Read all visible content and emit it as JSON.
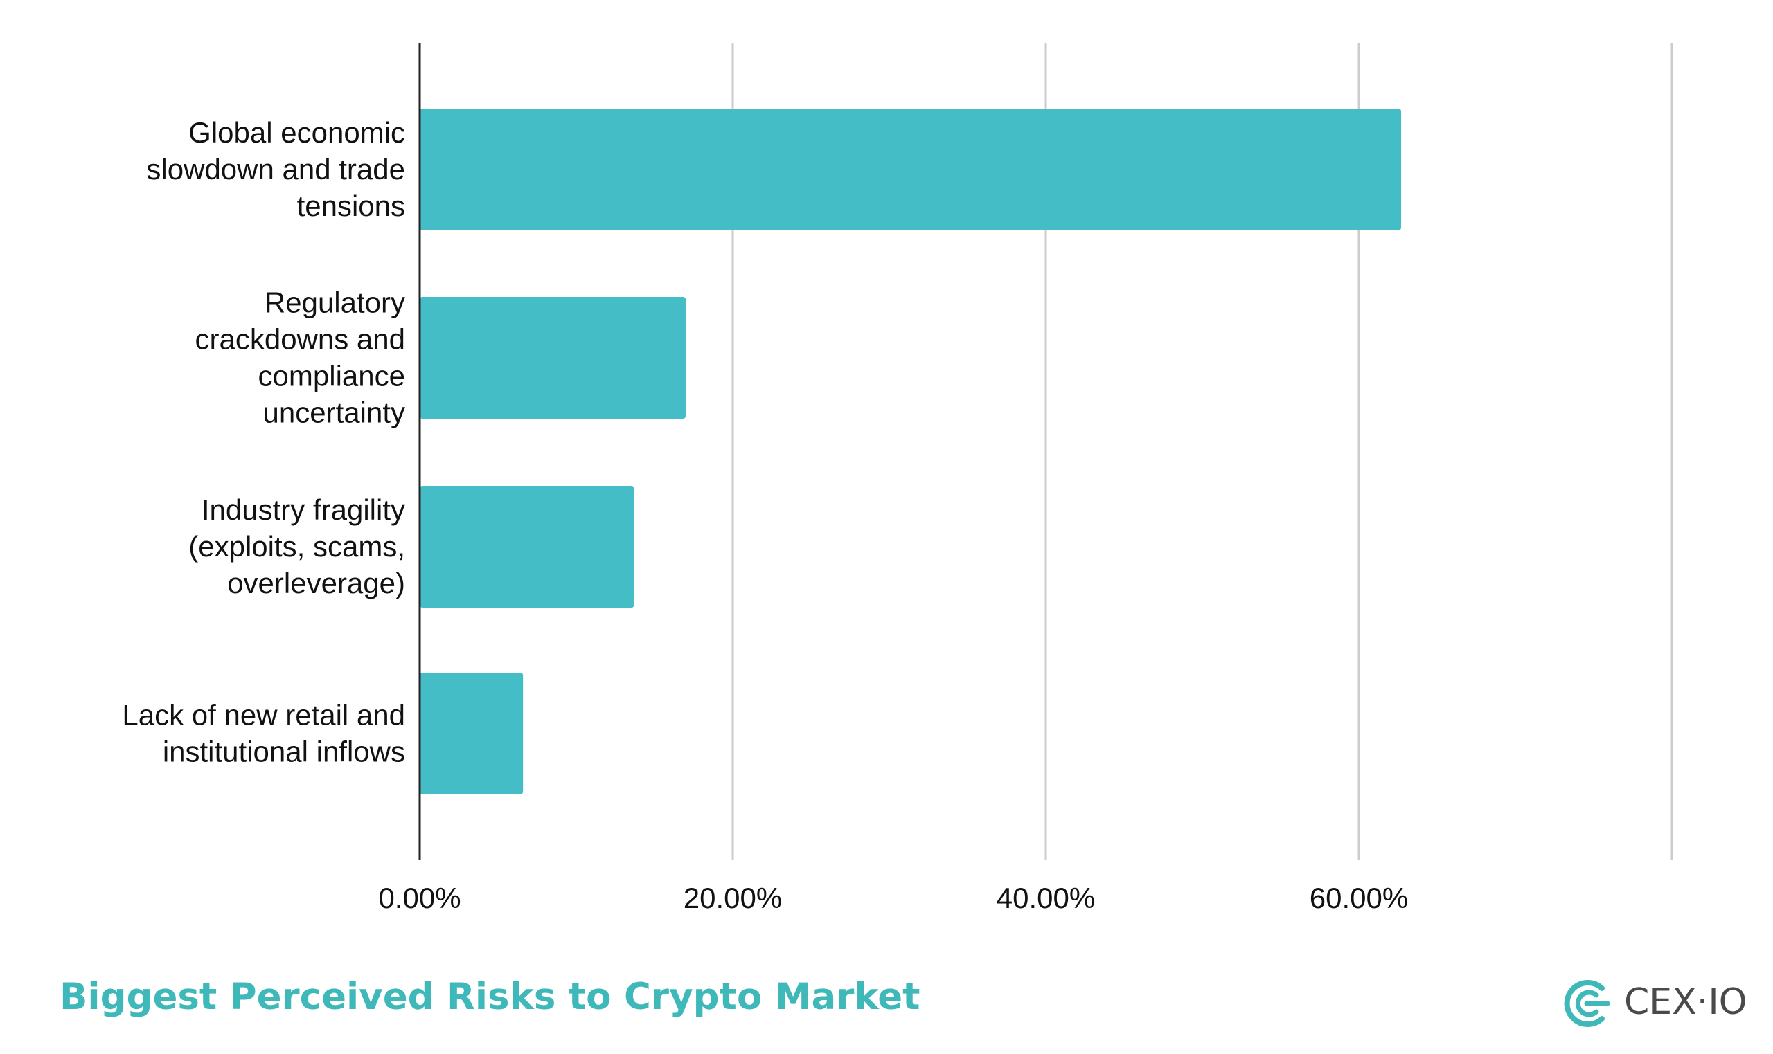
{
  "chart_data": {
    "type": "bar",
    "orientation": "horizontal",
    "title": "Biggest Perceived Risks to Crypto Market",
    "categories": [
      [
        "Global economic",
        "slowdown and trade",
        "tensions"
      ],
      [
        "Regulatory",
        "crackdowns and",
        "compliance",
        "uncertainty"
      ],
      [
        "Industry fragility",
        "(exploits, scams,",
        "overleverage)"
      ],
      [
        "Lack of new retail and",
        "institutional inflows"
      ]
    ],
    "values": [
      62.7,
      17.0,
      13.7,
      6.6
    ],
    "xlim": [
      0,
      80
    ],
    "xticks": [
      "0.00%",
      "20.00%",
      "40.00%",
      "60.00%"
    ],
    "grid": true,
    "bar_color": "#45bdc6"
  },
  "footer": {
    "title": "Biggest Perceived Risks to Crypto Market",
    "title_color": "#3fb8ba"
  },
  "logo": {
    "text": "CEX·IO",
    "icon": "cex-io-logo-icon",
    "color": "#3fb8ba"
  }
}
